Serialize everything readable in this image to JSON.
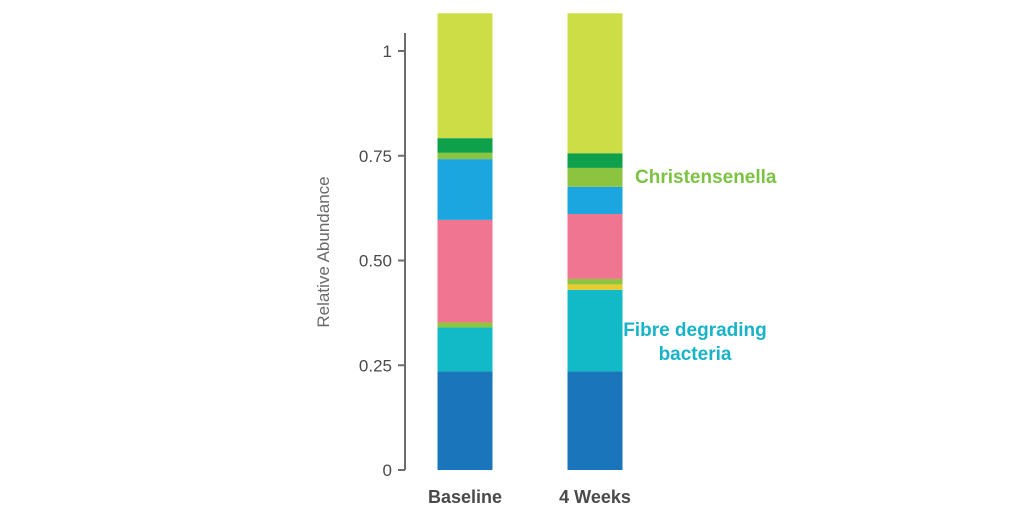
{
  "chart_data": {
    "type": "bar",
    "stacked": true,
    "ylabel": "Relative Abundance",
    "ylim": [
      0,
      1.09
    ],
    "yticks": [
      "0",
      "0.25",
      "0.50",
      "0.75",
      "1"
    ],
    "ytick_values": [
      0,
      0.25,
      0.5,
      0.75,
      1
    ],
    "categories": [
      "Baseline",
      "4 Weeks"
    ],
    "series": [
      {
        "color": "#1b75bb",
        "values": [
          0.235,
          0.235
        ]
      },
      {
        "color": "#12b9c6",
        "values": [
          0.105,
          0.195
        ]
      },
      {
        "color": "#e6cc2e",
        "values": [
          0.0,
          0.013
        ]
      },
      {
        "color": "#8cc63f",
        "values": [
          0.012,
          0.013
        ]
      },
      {
        "color": "#f07590",
        "values": [
          0.245,
          0.155
        ]
      },
      {
        "color": "#1ba6e0",
        "values": [
          0.145,
          0.065
        ]
      },
      {
        "color": "#8dc43f",
        "values": [
          0.015,
          0.045
        ]
      },
      {
        "color": "#0fa04b",
        "values": [
          0.035,
          0.035
        ]
      },
      {
        "color": "#cddd45",
        "values": [
          0.298,
          0.334
        ]
      }
    ],
    "annotations": [
      {
        "text": "Christensenella",
        "color": "#7cc243"
      },
      {
        "lines": [
          "Fibre degrading",
          "bacteria"
        ],
        "color": "#19b3c9"
      }
    ],
    "grid": false,
    "legend": "none"
  }
}
